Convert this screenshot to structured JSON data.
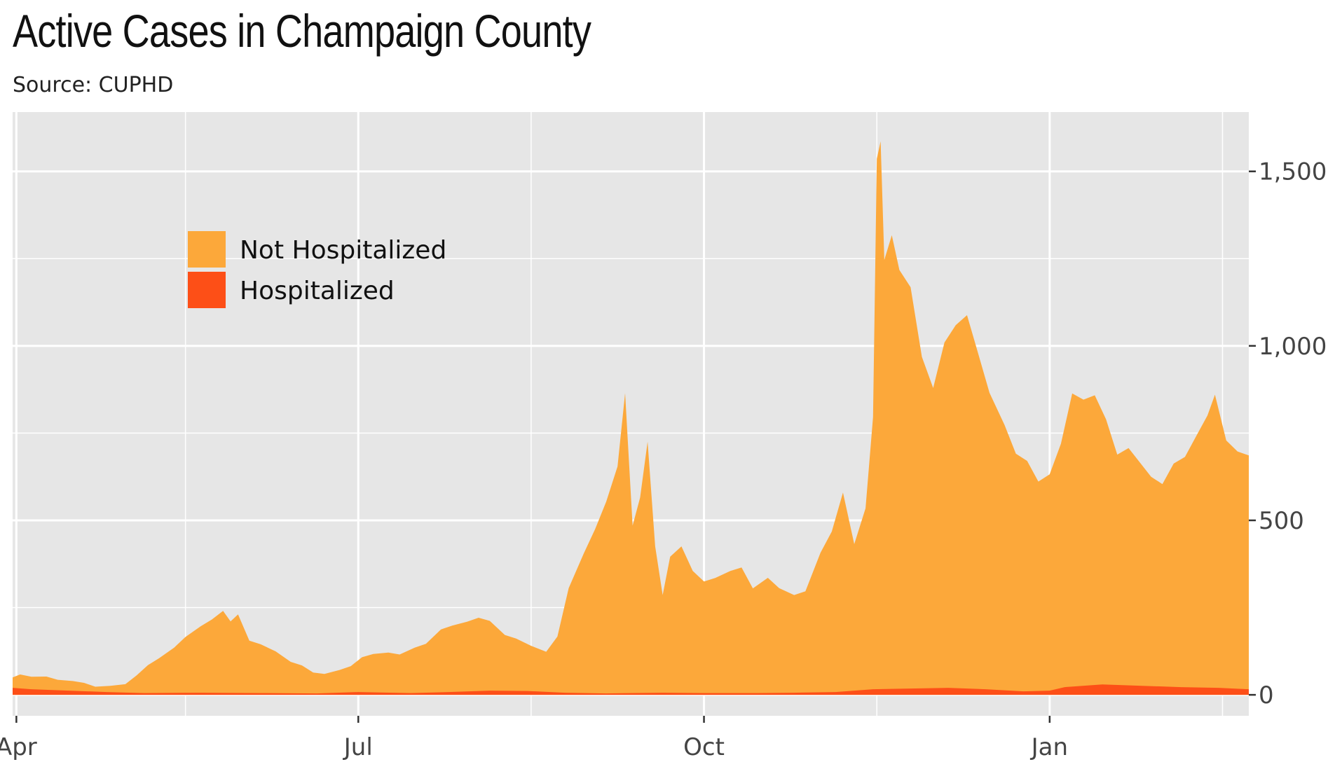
{
  "title": "Active Cases in Champaign County",
  "subtitle": "Source: CUPHD",
  "chart_data": {
    "type": "area",
    "stacked": true,
    "x_type": "date",
    "x_range": [
      "2020-03-31",
      "2021-02-23"
    ],
    "ylim": [
      -60,
      1670
    ],
    "x_ticks": [
      {
        "date": "2020-04-01",
        "label": "Apr"
      },
      {
        "date": "2020-07-01",
        "label": "Jul"
      },
      {
        "date": "2020-10-01",
        "label": "Oct"
      },
      {
        "date": "2021-01-01",
        "label": "Jan"
      }
    ],
    "y_ticks": [
      {
        "value": 0,
        "label": "0"
      },
      {
        "value": 500,
        "label": "500"
      },
      {
        "value": 1000,
        "label": "1,000"
      },
      {
        "value": 1500,
        "label": "1,500"
      }
    ],
    "legend_position": "top-left",
    "grid": true,
    "colors": {
      "panel": "#e6e6e6",
      "grid": "#ffffff",
      "not_hospitalized": "#fca83a",
      "hospitalized": "#fd4f17"
    },
    "series": [
      {
        "name": "Hospitalized",
        "color": "#fd4f17",
        "points": [
          [
            "2020-03-31",
            20
          ],
          [
            "2020-04-05",
            16
          ],
          [
            "2020-04-15",
            12
          ],
          [
            "2020-04-25",
            8
          ],
          [
            "2020-05-05",
            5
          ],
          [
            "2020-05-20",
            6
          ],
          [
            "2020-06-05",
            5
          ],
          [
            "2020-06-20",
            4
          ],
          [
            "2020-07-01",
            8
          ],
          [
            "2020-07-15",
            5
          ],
          [
            "2020-07-25",
            8
          ],
          [
            "2020-08-05",
            12
          ],
          [
            "2020-08-15",
            11
          ],
          [
            "2020-08-25",
            6
          ],
          [
            "2020-09-05",
            4
          ],
          [
            "2020-09-20",
            6
          ],
          [
            "2020-10-01",
            5
          ],
          [
            "2020-10-15",
            5
          ],
          [
            "2020-10-25",
            6
          ],
          [
            "2020-11-05",
            8
          ],
          [
            "2020-11-15",
            16
          ],
          [
            "2020-11-25",
            18
          ],
          [
            "2020-12-05",
            20
          ],
          [
            "2020-12-15",
            16
          ],
          [
            "2020-12-25",
            10
          ],
          [
            "2021-01-01",
            12
          ],
          [
            "2021-01-05",
            22
          ],
          [
            "2021-01-15",
            30
          ],
          [
            "2021-01-25",
            26
          ],
          [
            "2021-02-05",
            22
          ],
          [
            "2021-02-15",
            20
          ],
          [
            "2021-02-23",
            16
          ]
        ]
      },
      {
        "name": "Not Hospitalized",
        "color": "#fca83a",
        "points": [
          [
            "2020-03-31",
            30
          ],
          [
            "2020-04-02",
            40
          ],
          [
            "2020-04-05",
            36
          ],
          [
            "2020-04-09",
            38
          ],
          [
            "2020-04-12",
            30
          ],
          [
            "2020-04-16",
            28
          ],
          [
            "2020-04-19",
            24
          ],
          [
            "2020-04-22",
            14
          ],
          [
            "2020-04-26",
            18
          ],
          [
            "2020-04-30",
            24
          ],
          [
            "2020-05-03",
            50
          ],
          [
            "2020-05-06",
            80
          ],
          [
            "2020-05-09",
            100
          ],
          [
            "2020-05-13",
            130
          ],
          [
            "2020-05-16",
            160
          ],
          [
            "2020-05-20",
            190
          ],
          [
            "2020-05-23",
            210
          ],
          [
            "2020-05-26",
            235
          ],
          [
            "2020-05-28",
            205
          ],
          [
            "2020-05-30",
            225
          ],
          [
            "2020-06-02",
            150
          ],
          [
            "2020-06-05",
            140
          ],
          [
            "2020-06-09",
            120
          ],
          [
            "2020-06-13",
            90
          ],
          [
            "2020-06-16",
            80
          ],
          [
            "2020-06-19",
            60
          ],
          [
            "2020-06-22",
            55
          ],
          [
            "2020-06-26",
            65
          ],
          [
            "2020-06-29",
            75
          ],
          [
            "2020-07-02",
            100
          ],
          [
            "2020-07-05",
            110
          ],
          [
            "2020-07-09",
            115
          ],
          [
            "2020-07-12",
            110
          ],
          [
            "2020-07-16",
            130
          ],
          [
            "2020-07-19",
            140
          ],
          [
            "2020-07-23",
            180
          ],
          [
            "2020-07-26",
            190
          ],
          [
            "2020-07-30",
            200
          ],
          [
            "2020-08-02",
            210
          ],
          [
            "2020-08-05",
            200
          ],
          [
            "2020-08-09",
            160
          ],
          [
            "2020-08-12",
            150
          ],
          [
            "2020-08-16",
            130
          ],
          [
            "2020-08-20",
            115
          ],
          [
            "2020-08-23",
            160
          ],
          [
            "2020-08-26",
            300
          ],
          [
            "2020-08-30",
            400
          ],
          [
            "2020-09-02",
            470
          ],
          [
            "2020-09-05",
            550
          ],
          [
            "2020-09-08",
            650
          ],
          [
            "2020-09-10",
            860
          ],
          [
            "2020-09-12",
            480
          ],
          [
            "2020-09-14",
            560
          ],
          [
            "2020-09-16",
            720
          ],
          [
            "2020-09-18",
            420
          ],
          [
            "2020-09-20",
            280
          ],
          [
            "2020-09-22",
            390
          ],
          [
            "2020-09-25",
            420
          ],
          [
            "2020-09-28",
            350
          ],
          [
            "2020-10-01",
            320
          ],
          [
            "2020-10-04",
            330
          ],
          [
            "2020-10-08",
            350
          ],
          [
            "2020-10-11",
            360
          ],
          [
            "2020-10-14",
            300
          ],
          [
            "2020-10-18",
            330
          ],
          [
            "2020-10-21",
            300
          ],
          [
            "2020-10-25",
            280
          ],
          [
            "2020-10-28",
            290
          ],
          [
            "2020-11-01",
            400
          ],
          [
            "2020-11-04",
            460
          ],
          [
            "2020-11-07",
            570
          ],
          [
            "2020-11-10",
            420
          ],
          [
            "2020-11-13",
            520
          ],
          [
            "2020-11-15",
            780
          ],
          [
            "2020-11-16",
            1520
          ],
          [
            "2020-11-17",
            1570
          ],
          [
            "2020-11-18",
            1230
          ],
          [
            "2020-11-20",
            1300
          ],
          [
            "2020-11-22",
            1200
          ],
          [
            "2020-11-25",
            1150
          ],
          [
            "2020-11-28",
            950
          ],
          [
            "2020-12-01",
            860
          ],
          [
            "2020-12-04",
            990
          ],
          [
            "2020-12-07",
            1040
          ],
          [
            "2020-12-10",
            1070
          ],
          [
            "2020-12-13",
            960
          ],
          [
            "2020-12-16",
            850
          ],
          [
            "2020-12-20",
            760
          ],
          [
            "2020-12-23",
            680
          ],
          [
            "2020-12-26",
            660
          ],
          [
            "2020-12-29",
            600
          ],
          [
            "2021-01-01",
            620
          ],
          [
            "2021-01-04",
            700
          ],
          [
            "2021-01-07",
            840
          ],
          [
            "2021-01-10",
            820
          ],
          [
            "2021-01-13",
            830
          ],
          [
            "2021-01-16",
            760
          ],
          [
            "2021-01-19",
            660
          ],
          [
            "2021-01-22",
            680
          ],
          [
            "2021-01-25",
            640
          ],
          [
            "2021-01-28",
            600
          ],
          [
            "2021-01-31",
            580
          ],
          [
            "2021-02-03",
            640
          ],
          [
            "2021-02-06",
            660
          ],
          [
            "2021-02-09",
            720
          ],
          [
            "2021-02-12",
            780
          ],
          [
            "2021-02-14",
            840
          ],
          [
            "2021-02-17",
            710
          ],
          [
            "2021-02-20",
            680
          ],
          [
            "2021-02-23",
            670
          ]
        ]
      }
    ],
    "legend": [
      {
        "label": "Not Hospitalized",
        "color": "#fca83a"
      },
      {
        "label": "Hospitalized",
        "color": "#fd4f17"
      }
    ]
  }
}
